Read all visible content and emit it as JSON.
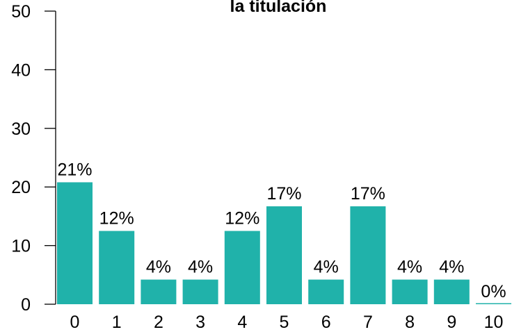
{
  "chart_data": {
    "type": "bar",
    "title": "la titulación",
    "categories": [
      "0",
      "1",
      "2",
      "3",
      "4",
      "5",
      "6",
      "7",
      "8",
      "9",
      "10"
    ],
    "values": [
      20.8,
      12.5,
      4.2,
      4.2,
      12.5,
      16.7,
      4.2,
      16.7,
      4.2,
      4.2,
      0
    ],
    "data_labels": [
      "21%",
      "12%",
      "4%",
      "4%",
      "12%",
      "17%",
      "4%",
      "17%",
      "4%",
      "4%",
      "0%"
    ],
    "y_ticks": [
      "0",
      "10",
      "20",
      "30",
      "40",
      "50"
    ],
    "xlabel": "",
    "ylabel": "",
    "ylim": [
      0,
      50
    ],
    "bar_color": "#20B2AA",
    "grid": false,
    "legend": "none"
  }
}
